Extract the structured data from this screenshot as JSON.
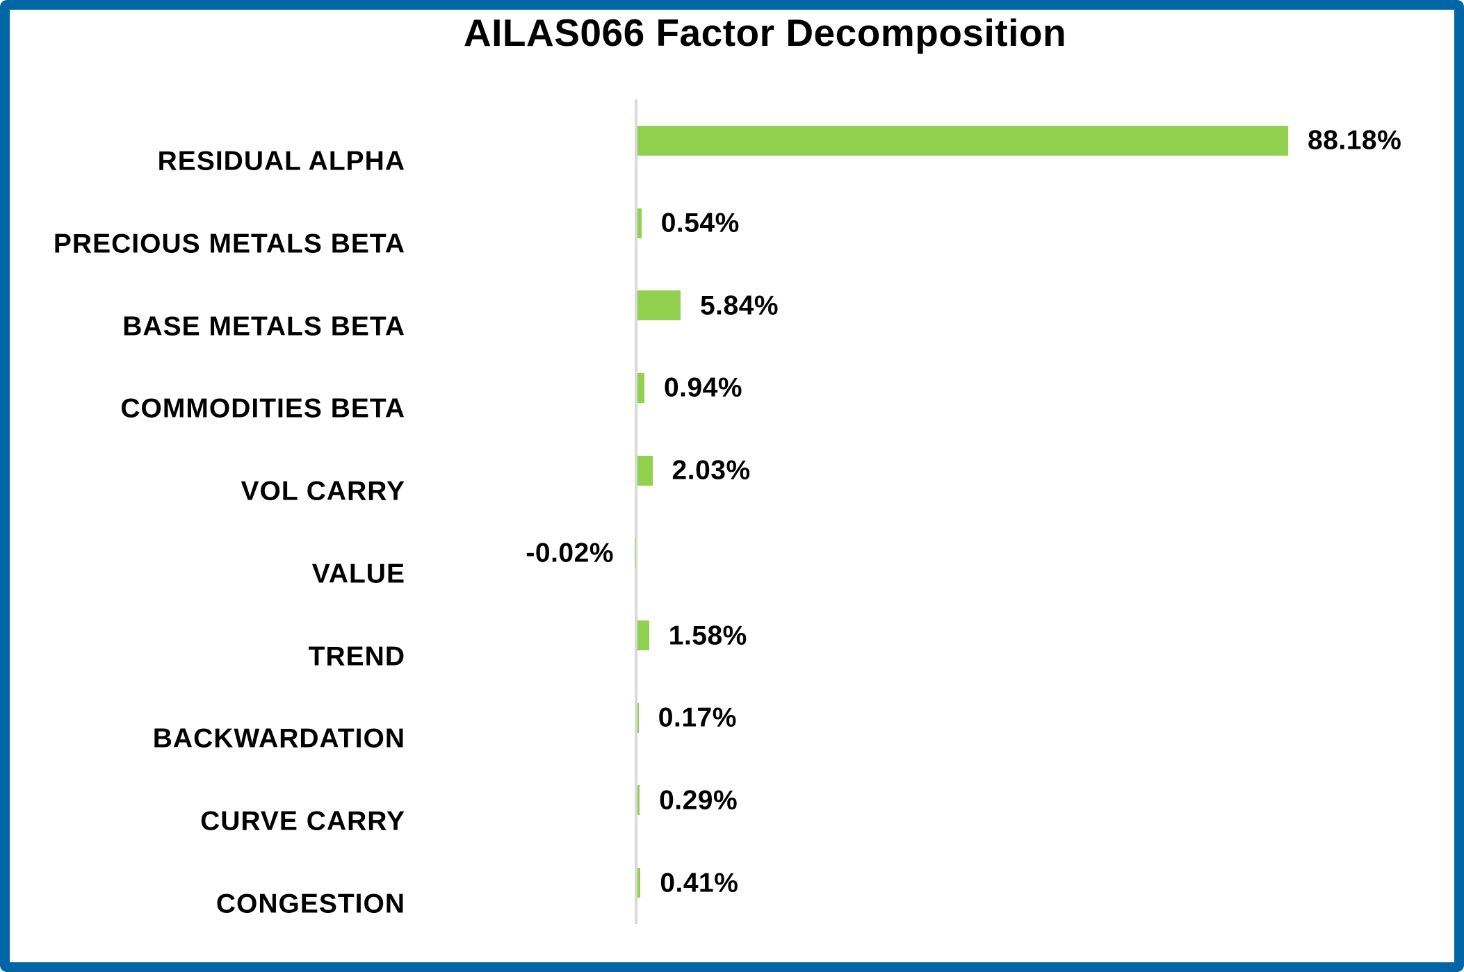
{
  "chart_data": {
    "type": "bar",
    "orientation": "horizontal",
    "title": "AILAS066 Factor Decomposition",
    "categories": [
      "RESIDUAL ALPHA",
      "PRECIOUS METALS BETA",
      "BASE METALS BETA",
      "COMMODITIES BETA",
      "VOL CARRY",
      "VALUE",
      "TREND",
      "BACKWARDATION",
      "CURVE CARRY",
      "CONGESTION"
    ],
    "values": [
      88.18,
      0.54,
      5.84,
      0.94,
      2.03,
      -0.02,
      1.58,
      0.17,
      0.29,
      0.41
    ],
    "data_labels": [
      "88.18%",
      "0.54%",
      "5.84%",
      "0.94%",
      "2.03%",
      "-0.02%",
      "1.58%",
      "0.17%",
      "0.29%",
      "0.41%"
    ],
    "unit": "%",
    "legend": "none",
    "grid": false,
    "bar_color": "#92D050",
    "axis_line_color": "#D9D9D9",
    "border_color": "#0066A6",
    "text_color": "#000000"
  }
}
